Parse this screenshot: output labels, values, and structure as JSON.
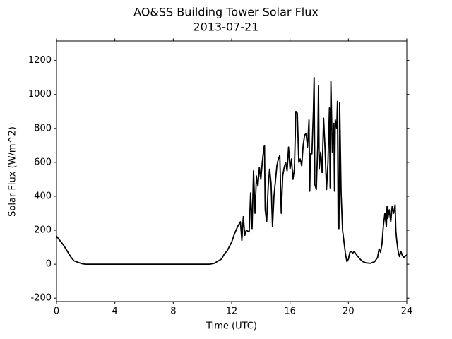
{
  "chart_data": {
    "type": "line",
    "title": "AO&SS Building Tower Solar Flux",
    "subtitle": "2013-07-21",
    "x_label": "Time (UTC)",
    "y_label": "Solar Flux (W/m^2)",
    "color": "#000000",
    "xlim": [
      0,
      24
    ],
    "xticks": [
      0,
      4,
      8,
      12,
      16,
      20,
      24
    ],
    "ylim": [
      -220,
      1315
    ],
    "yticks": [
      -200,
      0,
      200,
      400,
      600,
      800,
      1000,
      1200
    ],
    "x": [
      0,
      0.5,
      1,
      1.2,
      1.5,
      1.8,
      2,
      10.5,
      10.8,
      11,
      11.3,
      11.5,
      11.7,
      12,
      12.2,
      12.4,
      12.6,
      12.7,
      12.8,
      12.9,
      13,
      13.2,
      13.3,
      13.4,
      13.5,
      13.6,
      13.7,
      13.8,
      13.9,
      14,
      14.1,
      14.2,
      14.25,
      14.3,
      14.4,
      14.5,
      14.6,
      14.7,
      14.8,
      14.9,
      15,
      15.1,
      15.2,
      15.3,
      15.4,
      15.5,
      15.6,
      15.7,
      15.8,
      15.9,
      16,
      16.1,
      16.2,
      16.3,
      16.4,
      16.5,
      16.6,
      16.7,
      16.8,
      16.9,
      17,
      17.1,
      17.2,
      17.3,
      17.35,
      17.4,
      17.5,
      17.6,
      17.65,
      17.7,
      17.8,
      17.9,
      17.95,
      18,
      18.1,
      18.2,
      18.3,
      18.4,
      18.5,
      18.6,
      18.7,
      18.75,
      18.8,
      18.9,
      19,
      19.05,
      19.1,
      19.2,
      19.25,
      19.3,
      19.35,
      19.4,
      19.5,
      19.6,
      19.8,
      19.9,
      20,
      20.1,
      20.2,
      20.3,
      20.4,
      20.6,
      20.8,
      21,
      21.2,
      21.5,
      21.8,
      22,
      22.1,
      22.2,
      22.3,
      22.4,
      22.5,
      22.6,
      22.65,
      22.7,
      22.8,
      22.9,
      23,
      23.1,
      23.2,
      23.25,
      23.3,
      23.4,
      23.5,
      23.6,
      23.7,
      23.8,
      24
    ],
    "values": [
      165,
      110,
      40,
      20,
      10,
      2,
      0,
      0,
      5,
      15,
      30,
      60,
      80,
      130,
      180,
      220,
      250,
      140,
      280,
      170,
      200,
      190,
      420,
      210,
      550,
      300,
      520,
      460,
      570,
      500,
      600,
      680,
      700,
      320,
      250,
      450,
      560,
      480,
      220,
      400,
      490,
      580,
      620,
      640,
      300,
      520,
      570,
      600,
      550,
      690,
      560,
      620,
      500,
      560,
      900,
      890,
      600,
      620,
      580,
      700,
      760,
      770,
      690,
      850,
      430,
      650,
      650,
      900,
      1100,
      470,
      440,
      700,
      1050,
      560,
      660,
      540,
      860,
      680,
      440,
      600,
      920,
      450,
      1080,
      660,
      830,
      430,
      850,
      800,
      960,
      230,
      210,
      950,
      420,
      200,
      60,
      15,
      30,
      70,
      75,
      65,
      75,
      50,
      30,
      15,
      8,
      5,
      15,
      40,
      90,
      70,
      120,
      230,
      300,
      220,
      340,
      270,
      320,
      250,
      340,
      300,
      350,
      200,
      150,
      80,
      45,
      75,
      50,
      40,
      55
    ]
  }
}
